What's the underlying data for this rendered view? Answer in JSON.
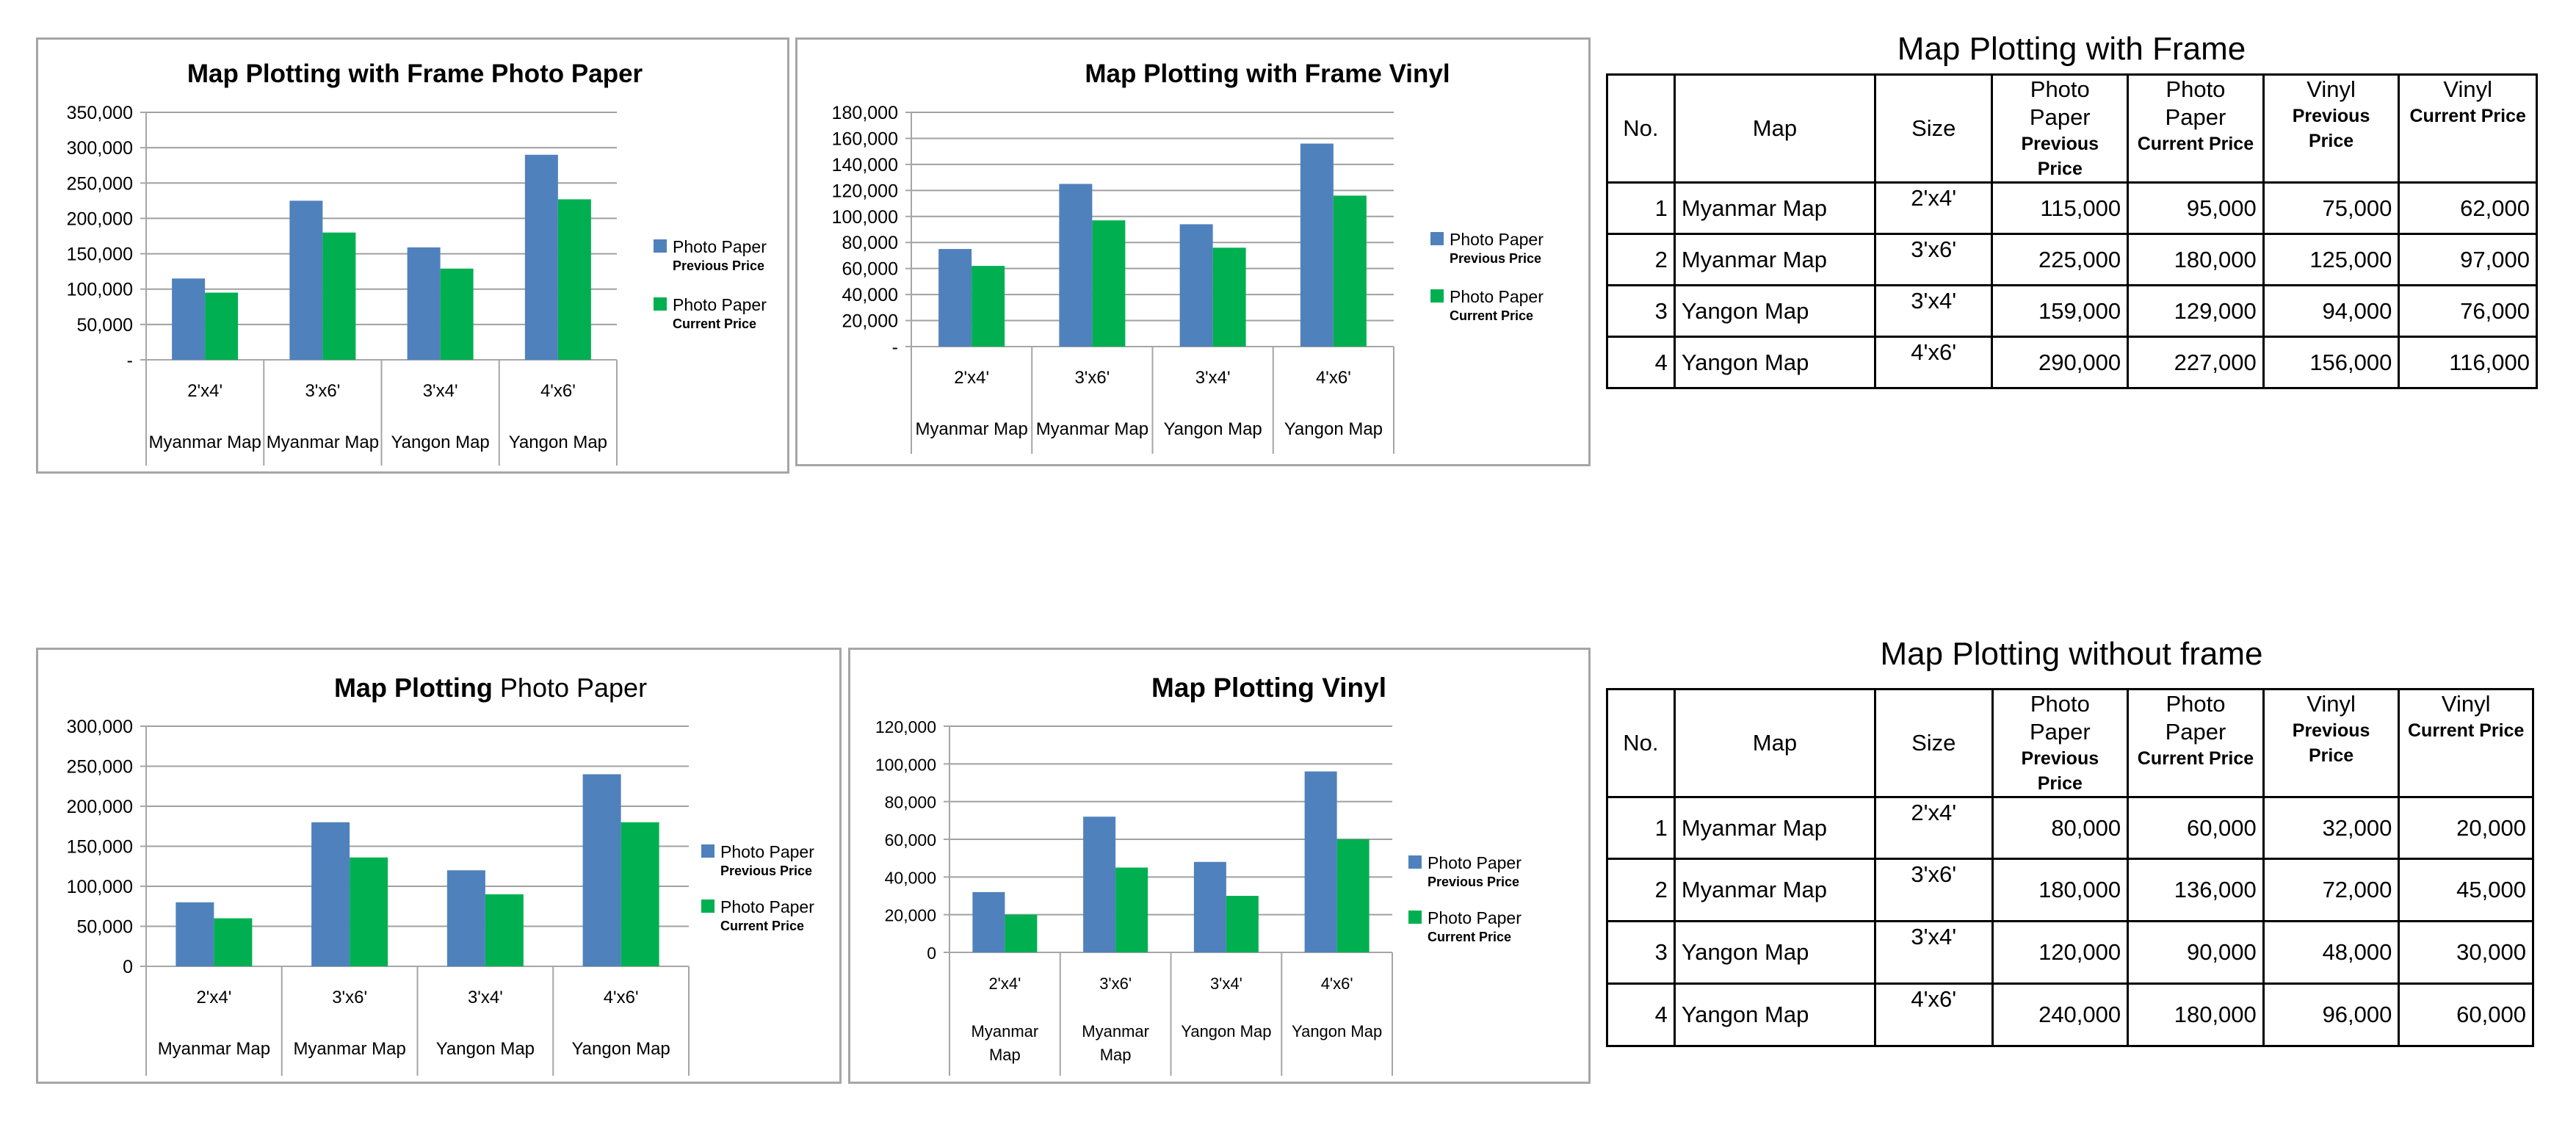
{
  "chart_data": [
    {
      "type": "bar",
      "title": "Map Plotting with Frame Photo Paper",
      "title_parts": [
        {
          "text": "Map Plotting with Frame Photo Paper",
          "bold": true
        }
      ],
      "categories": [
        "2'x4'",
        "3'x6'",
        "3'x4'",
        "4'x6'"
      ],
      "category_groups": [
        "Myanmar Map",
        "Myanmar Map",
        "Yangon Map",
        "Yangon Map"
      ],
      "series": [
        {
          "label": "Photo Paper",
          "sublabel": "Previous Price",
          "color": "#4f81bd",
          "values": [
            115000,
            225000,
            159000,
            290000
          ]
        },
        {
          "label": "Photo Paper",
          "sublabel": "Current Price",
          "color": "#00b050",
          "values": [
            95000,
            180000,
            129000,
            227000
          ]
        }
      ],
      "ylim": [
        0,
        350000
      ],
      "yticks": [
        "-",
        "50,000",
        "100,000",
        "150,000",
        "200,000",
        "250,000",
        "300,000",
        "350,000"
      ],
      "legend": "right",
      "grid": true
    },
    {
      "type": "bar",
      "title": "Map Plotting with Frame Vinyl",
      "title_parts": [
        {
          "text": "Map Plotting with Frame Vinyl",
          "bold": true
        }
      ],
      "categories": [
        "2'x4'",
        "3'x6'",
        "3'x4'",
        "4'x6'"
      ],
      "category_groups": [
        "Myanmar Map",
        "Myanmar Map",
        "Yangon Map",
        "Yangon Map"
      ],
      "series": [
        {
          "label": "Photo Paper",
          "sublabel": "Previous Price",
          "color": "#4f81bd",
          "values": [
            75000,
            125000,
            94000,
            156000
          ]
        },
        {
          "label": "Photo Paper",
          "sublabel": "Current Price",
          "color": "#00b050",
          "values": [
            62000,
            97000,
            76000,
            116000
          ]
        }
      ],
      "ylim": [
        0,
        180000
      ],
      "yticks": [
        "-",
        "20,000",
        "40,000",
        "60,000",
        "80,000",
        "100,000",
        "120,000",
        "140,000",
        "160,000",
        "180,000"
      ],
      "legend": "right",
      "grid": true
    },
    {
      "type": "bar",
      "title": "Map Plotting Photo Paper",
      "title_parts": [
        {
          "text": "Map Plotting ",
          "bold": true
        },
        {
          "text": "Photo Paper",
          "bold": false
        }
      ],
      "categories": [
        "2'x4'",
        "3'x6'",
        "3'x4'",
        "4'x6'"
      ],
      "category_groups": [
        "Myanmar Map",
        "Myanmar Map",
        "Yangon Map",
        "Yangon Map"
      ],
      "series": [
        {
          "label": "Photo Paper",
          "sublabel": "Previous Price",
          "color": "#4f81bd",
          "values": [
            80000,
            180000,
            120000,
            240000
          ]
        },
        {
          "label": "Photo Paper",
          "sublabel": "Current Price",
          "color": "#00b050",
          "values": [
            60000,
            136000,
            90000,
            180000
          ]
        }
      ],
      "ylim": [
        0,
        300000
      ],
      "yticks": [
        "0",
        "50,000",
        "100,000",
        "150,000",
        "200,000",
        "250,000",
        "300,000"
      ],
      "legend": "right",
      "grid": true
    },
    {
      "type": "bar",
      "title": "Map Plotting Vinyl",
      "title_parts": [
        {
          "text": "Map Plotting Vinyl",
          "bold": true
        }
      ],
      "categories": [
        "2'x4'",
        "3'x6'",
        "3'x4'",
        "4'x6'"
      ],
      "category_groups": [
        "Myanmar Map",
        "Myanmar Map",
        "Yangon Map",
        "Yangon Map"
      ],
      "series": [
        {
          "label": "Photo Paper",
          "sublabel": "Previous Price",
          "color": "#4f81bd",
          "values": [
            32000,
            72000,
            48000,
            96000
          ]
        },
        {
          "label": "Photo Paper",
          "sublabel": "Current Price",
          "color": "#00b050",
          "values": [
            20000,
            45000,
            30000,
            60000
          ]
        }
      ],
      "ylim": [
        0,
        120000
      ],
      "yticks": [
        "0",
        "20,000",
        "40,000",
        "60,000",
        "80,000",
        "100,000",
        "120,000"
      ],
      "legend": "right",
      "grid": true
    }
  ],
  "tables": [
    {
      "title": "Map Plotting with Frame",
      "headers": {
        "no": "No.",
        "map": "Map",
        "size": "Size",
        "pp_prev_top": "Photo Paper",
        "pp_prev_sub": "Previous Price",
        "pp_cur_top": "Photo Paper",
        "pp_cur_sub": "Current Price",
        "v_prev_top": "Vinyl",
        "v_prev_sub": "Previous Price",
        "v_cur_top": "Vinyl",
        "v_cur_sub": "Current Price"
      },
      "rows": [
        {
          "no": "1",
          "map": "Myanmar Map",
          "size": "2'x4'",
          "pp_prev": "115,000",
          "pp_cur": "95,000",
          "v_prev": "75,000",
          "v_cur": "62,000"
        },
        {
          "no": "2",
          "map": "Myanmar Map",
          "size": "3'x6'",
          "pp_prev": "225,000",
          "pp_cur": "180,000",
          "v_prev": "125,000",
          "v_cur": "97,000"
        },
        {
          "no": "3",
          "map": "Yangon Map",
          "size": "3'x4'",
          "pp_prev": "159,000",
          "pp_cur": "129,000",
          "v_prev": "94,000",
          "v_cur": "76,000"
        },
        {
          "no": "4",
          "map": "Yangon Map",
          "size": "4'x6'",
          "pp_prev": "290,000",
          "pp_cur": "227,000",
          "v_prev": "156,000",
          "v_cur": "116,000"
        }
      ]
    },
    {
      "title": "Map Plotting without frame",
      "headers": {
        "no": "No.",
        "map": "Map",
        "size": "Size",
        "pp_prev_top": "Photo Paper",
        "pp_prev_sub": "Previous Price",
        "pp_cur_top": "Photo Paper",
        "pp_cur_sub": "Current Price",
        "v_prev_top": "Vinyl",
        "v_prev_sub": "Previous Price",
        "v_cur_top": "Vinyl",
        "v_cur_sub": "Current Price"
      },
      "rows": [
        {
          "no": "1",
          "map": "Myanmar Map",
          "size": "2'x4'",
          "pp_prev": "80,000",
          "pp_cur": "60,000",
          "v_prev": "32,000",
          "v_cur": "20,000"
        },
        {
          "no": "2",
          "map": "Myanmar Map",
          "size": "3'x6'",
          "pp_prev": "180,000",
          "pp_cur": "136,000",
          "v_prev": "72,000",
          "v_cur": "45,000"
        },
        {
          "no": "3",
          "map": "Yangon Map",
          "size": "3'x4'",
          "pp_prev": "120,000",
          "pp_cur": "90,000",
          "v_prev": "48,000",
          "v_cur": "30,000"
        },
        {
          "no": "4",
          "map": "Yangon Map",
          "size": "4'x6'",
          "pp_prev": "240,000",
          "pp_cur": "180,000",
          "v_prev": "96,000",
          "v_cur": "60,000"
        }
      ]
    }
  ]
}
